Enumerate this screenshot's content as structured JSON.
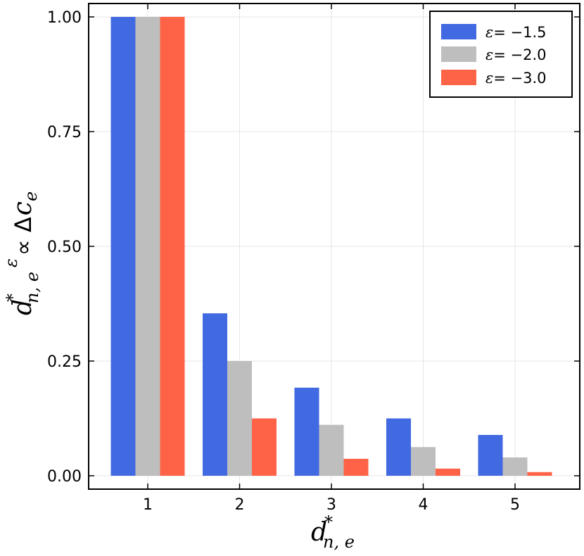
{
  "chart_data": {
    "type": "bar",
    "categories": [
      "1",
      "2",
      "3",
      "4",
      "5"
    ],
    "series": [
      {
        "name": "ε = −1.5",
        "color": "#4169e1",
        "values": [
          1.0,
          0.354,
          0.192,
          0.125,
          0.089
        ]
      },
      {
        "name": "ε = −2.0",
        "color": "#bebebe",
        "values": [
          1.0,
          0.25,
          0.111,
          0.0625,
          0.04
        ]
      },
      {
        "name": "ε = −3.0",
        "color": "#ff6347",
        "values": [
          1.0,
          0.125,
          0.037,
          0.0156,
          0.008
        ]
      }
    ],
    "legend": {
      "entries": [
        {
          "symbol": "ε",
          "eq": "= −1.5"
        },
        {
          "symbol": "ε",
          "eq": "= −2.0"
        },
        {
          "symbol": "ε",
          "eq": "= −3.0"
        }
      ],
      "position": "top-right"
    },
    "ylim": [
      -0.03,
      1.03
    ],
    "yticks": [
      0.0,
      0.25,
      0.5,
      0.75,
      1.0
    ],
    "ytick_labels": [
      "0.00",
      "0.25",
      "0.50",
      "0.75",
      "1.00"
    ],
    "xlabel": {
      "base": "d",
      "sup": "*",
      "sub": "n, e"
    },
    "ylabel": {
      "base": "d",
      "sup": "*",
      "sub": "n, e",
      "exp": "ε",
      "rel": "∝ Δ",
      "tail": "c",
      "tail_sub": "e"
    },
    "grid": true
  }
}
